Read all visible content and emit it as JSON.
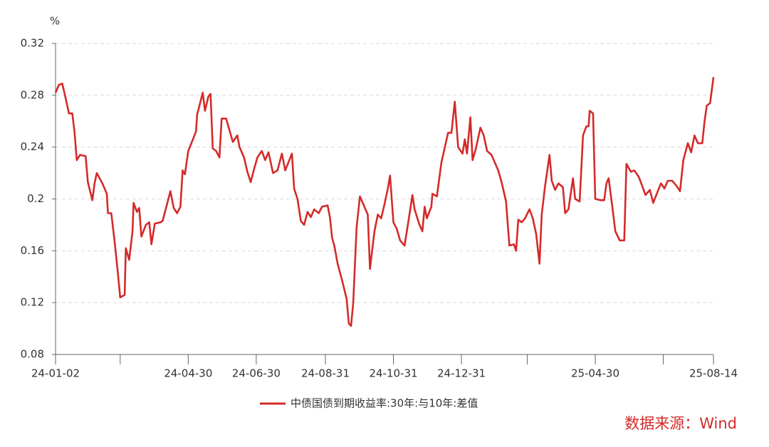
{
  "chart_data": {
    "type": "line",
    "y_unit": "%",
    "source": "数据来源：Wind",
    "grid": true,
    "xlim": [
      "24-01-02",
      "25-08-14"
    ],
    "xticks": [
      "24-01-02",
      {
        "value": "24-02-29",
        "label": null
      },
      "24-04-30",
      "24-06-30",
      "24-08-31",
      "24-10-31",
      "24-12-31",
      {
        "value": "25-02-28",
        "label": null
      },
      "25-04-30",
      {
        "value": "25-06-30",
        "label": null
      },
      "25-08-14"
    ],
    "ylim": [
      0.08,
      0.32
    ],
    "yticks": [
      0.08,
      0.12,
      0.16,
      0.2,
      0.24,
      0.28,
      0.32
    ],
    "x": [
      "24-01-02",
      "24-01-05",
      "24-01-08",
      "24-01-11",
      "24-01-14",
      "24-01-17",
      "24-01-19",
      "24-01-21",
      "24-01-24",
      "24-01-29",
      "24-01-31",
      "24-02-04",
      "24-02-06",
      "24-02-08",
      "24-02-13",
      "24-02-17",
      "24-02-18",
      "24-02-21",
      "24-02-24",
      "24-02-27",
      "24-02-29",
      "24-03-04",
      "24-03-05",
      "24-03-08",
      "24-03-11",
      "24-03-12",
      "24-03-15",
      "24-03-17",
      "24-03-19",
      "24-03-23",
      "24-03-26",
      "24-03-28",
      "24-03-31",
      "24-04-05",
      "24-04-07",
      "24-04-11",
      "24-04-14",
      "24-04-17",
      "24-04-20",
      "24-04-23",
      "24-04-25",
      "24-04-27",
      "24-04-30",
      "24-05-07",
      "24-05-08",
      "24-05-13",
      "24-05-15",
      "24-05-18",
      "24-05-20",
      "24-05-22",
      "24-05-25",
      "24-05-28",
      "24-05-30",
      "24-06-03",
      "24-06-06",
      "24-06-09",
      "24-06-13",
      "24-06-15",
      "24-06-19",
      "24-06-22",
      "24-06-25",
      "24-06-28",
      "24-07-01",
      "24-07-05",
      "24-07-08",
      "24-07-11",
      "24-07-15",
      "24-07-19",
      "24-07-23",
      "24-07-26",
      "24-08-01",
      "24-08-03",
      "24-08-06",
      "24-08-09",
      "24-08-12",
      "24-08-15",
      "24-08-18",
      "24-08-21",
      "24-08-25",
      "24-08-28",
      "24-09-02",
      "24-09-04",
      "24-09-06",
      "24-09-08",
      "24-09-11",
      "24-09-15",
      "24-09-19",
      "24-09-21",
      "24-09-23",
      "24-09-25",
      "24-09-28",
      "24-10-01",
      "24-10-08",
      "24-10-10",
      "24-10-14",
      "24-10-17",
      "24-10-20",
      "24-10-23",
      "24-10-26",
      "24-10-28",
      "24-10-31",
      "24-11-03",
      "24-11-06",
      "24-11-10",
      "24-11-14",
      "24-11-17",
      "24-11-19",
      "24-11-23",
      "24-11-26",
      "24-11-28",
      "24-11-30",
      "24-12-04",
      "24-12-05",
      "24-12-09",
      "24-12-13",
      "24-12-19",
      "24-12-22",
      "24-12-25",
      "24-12-28",
      "25-01-01",
      "25-01-03",
      "25-01-05",
      "25-01-08",
      "25-01-10",
      "25-01-13",
      "25-01-17",
      "25-01-20",
      "25-01-23",
      "25-01-27",
      "25-02-02",
      "25-02-05",
      "25-02-09",
      "25-02-12",
      "25-02-16",
      "25-02-18",
      "25-02-20",
      "25-02-23",
      "25-02-26",
      "25-03-02",
      "25-03-05",
      "25-03-08",
      "25-03-11",
      "25-03-13",
      "25-03-16",
      "25-03-20",
      "25-03-22",
      "25-03-25",
      "25-03-28",
      "25-04-01",
      "25-04-03",
      "25-04-06",
      "25-04-10",
      "25-04-12",
      "25-04-16",
      "25-04-19",
      "25-04-22",
      "25-04-24",
      "25-04-25",
      "25-04-28",
      "25-04-30",
      "25-05-05",
      "25-05-08",
      "25-05-10",
      "25-05-12",
      "25-05-15",
      "25-05-18",
      "25-05-22",
      "25-05-26",
      "25-05-28",
      "25-06-01",
      "25-06-04",
      "25-06-08",
      "25-06-12",
      "25-06-14",
      "25-06-18",
      "25-06-21",
      "25-06-26",
      "25-06-28",
      "25-07-01",
      "25-07-04",
      "25-07-08",
      "25-07-12",
      "25-07-15",
      "25-07-18",
      "25-07-22",
      "25-07-25",
      "25-07-28",
      "25-07-31",
      "25-08-04",
      "25-08-06",
      "25-08-08",
      "25-08-11",
      "25-08-14"
    ],
    "series": [
      {
        "name": "中债国债到期收益率:30年:与10年:差值",
        "color": "#d42a2a",
        "values": [
          0.282,
          0.288,
          0.289,
          0.278,
          0.266,
          0.266,
          0.252,
          0.23,
          0.234,
          0.233,
          0.213,
          0.199,
          0.212,
          0.22,
          0.212,
          0.204,
          0.189,
          0.189,
          0.167,
          0.142,
          0.124,
          0.126,
          0.162,
          0.153,
          0.175,
          0.197,
          0.19,
          0.193,
          0.171,
          0.18,
          0.182,
          0.165,
          0.181,
          0.182,
          0.183,
          0.196,
          0.206,
          0.193,
          0.189,
          0.194,
          0.222,
          0.219,
          0.237,
          0.252,
          0.265,
          0.282,
          0.268,
          0.279,
          0.281,
          0.239,
          0.237,
          0.232,
          0.262,
          0.262,
          0.253,
          0.244,
          0.249,
          0.24,
          0.232,
          0.221,
          0.213,
          0.223,
          0.232,
          0.237,
          0.23,
          0.236,
          0.22,
          0.222,
          0.235,
          0.222,
          0.235,
          0.208,
          0.2,
          0.183,
          0.18,
          0.19,
          0.186,
          0.192,
          0.189,
          0.194,
          0.195,
          0.186,
          0.17,
          0.164,
          0.15,
          0.137,
          0.123,
          0.104,
          0.102,
          0.12,
          0.178,
          0.202,
          0.188,
          0.146,
          0.175,
          0.188,
          0.185,
          0.196,
          0.208,
          0.218,
          0.182,
          0.177,
          0.168,
          0.164,
          0.186,
          0.203,
          0.192,
          0.181,
          0.175,
          0.194,
          0.185,
          0.194,
          0.204,
          0.202,
          0.228,
          0.251,
          0.251,
          0.275,
          0.24,
          0.235,
          0.246,
          0.235,
          0.263,
          0.23,
          0.239,
          0.255,
          0.249,
          0.237,
          0.234,
          0.222,
          0.213,
          0.198,
          0.164,
          0.165,
          0.16,
          0.184,
          0.182,
          0.185,
          0.192,
          0.185,
          0.173,
          0.15,
          0.188,
          0.21,
          0.234,
          0.214,
          0.207,
          0.212,
          0.209,
          0.189,
          0.192,
          0.216,
          0.2,
          0.198,
          0.249,
          0.256,
          0.256,
          0.268,
          0.266,
          0.2,
          0.199,
          0.199,
          0.212,
          0.216,
          0.196,
          0.175,
          0.168,
          0.168,
          0.227,
          0.221,
          0.222,
          0.217,
          0.208,
          0.203,
          0.207,
          0.197,
          0.208,
          0.212,
          0.208,
          0.214,
          0.214,
          0.21,
          0.206,
          0.23,
          0.243,
          0.236,
          0.249,
          0.243,
          0.243,
          0.26,
          0.272,
          0.274,
          0.294
        ]
      }
    ]
  }
}
